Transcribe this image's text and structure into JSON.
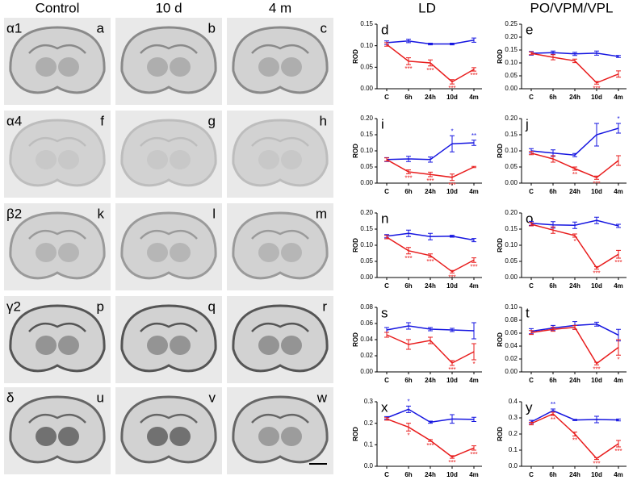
{
  "image_panels": {
    "column_titles": [
      "Control",
      "10 d",
      "4 m"
    ],
    "row_labels": [
      "α1",
      "α4",
      "β2",
      "γ2",
      "δ"
    ],
    "letters": [
      [
        "a",
        "b",
        "c"
      ],
      [
        "f",
        "g",
        "h"
      ],
      [
        "k",
        "l",
        "m"
      ],
      [
        "p",
        "q",
        "r"
      ],
      [
        "u",
        "v",
        "w"
      ]
    ]
  },
  "chart_column_titles": [
    "LD",
    "PO/VPM/VPL"
  ],
  "chart_data": [
    {
      "type": "line",
      "panel_label": "d",
      "ylabel": "ROD",
      "categories": [
        "C",
        "6h",
        "24h",
        "10d",
        "4m"
      ],
      "ylim": [
        0,
        0.15
      ],
      "yticks": [
        {
          "value": 0,
          "label": "0.00"
        },
        {
          "value": 0.05,
          "label": "0.05"
        },
        {
          "value": 0.1,
          "label": "0.10"
        },
        {
          "value": 0.15,
          "label": "0.15"
        }
      ],
      "series": [
        {
          "color": "#1515e0",
          "values": [
            0.107,
            0.111,
            0.104,
            0.104,
            0.113
          ],
          "errors": [
            0.004,
            0.004,
            0.002,
            0.002,
            0.005
          ],
          "stars": [
            null,
            null,
            null,
            null,
            null
          ]
        },
        {
          "color": "#e81c1c",
          "values": [
            0.103,
            0.064,
            0.06,
            0.016,
            0.045
          ],
          "errors": [
            0.004,
            0.008,
            0.007,
            0.005,
            0.004
          ],
          "stars": [
            null,
            "***",
            "***",
            "***",
            "***"
          ]
        }
      ]
    },
    {
      "type": "line",
      "panel_label": "e",
      "ylabel": "ROD",
      "categories": [
        "C",
        "6h",
        "24h",
        "10d",
        "4m"
      ],
      "ylim": [
        0,
        0.25
      ],
      "yticks": [
        {
          "value": 0,
          "label": "0.00"
        },
        {
          "value": 0.05,
          "label": "0.05"
        },
        {
          "value": 0.1,
          "label": "0.10"
        },
        {
          "value": 0.15,
          "label": "0.15"
        },
        {
          "value": 0.2,
          "label": "0.20"
        },
        {
          "value": 0.25,
          "label": "0.25"
        }
      ],
      "series": [
        {
          "color": "#1515e0",
          "values": [
            0.137,
            0.14,
            0.135,
            0.138,
            0.125
          ],
          "errors": [
            0.007,
            0.006,
            0.006,
            0.008,
            0.004
          ],
          "stars": [
            null,
            null,
            null,
            null,
            null
          ]
        },
        {
          "color": "#e81c1c",
          "values": [
            0.137,
            0.122,
            0.108,
            0.023,
            0.057
          ],
          "errors": [
            0.005,
            0.01,
            0.007,
            0.005,
            0.012
          ],
          "stars": [
            null,
            null,
            null,
            "***",
            null
          ]
        }
      ]
    },
    {
      "type": "line",
      "panel_label": "i",
      "ylabel": "ROD",
      "categories": [
        "C",
        "6h",
        "24h",
        "10d",
        "4m"
      ],
      "ylim": [
        0,
        0.2
      ],
      "yticks": [
        {
          "value": 0,
          "label": "0.00"
        },
        {
          "value": 0.05,
          "label": "0.05"
        },
        {
          "value": 0.1,
          "label": "0.10"
        },
        {
          "value": 0.15,
          "label": "0.15"
        },
        {
          "value": 0.2,
          "label": "0.20"
        }
      ],
      "series": [
        {
          "color": "#1515e0",
          "values": [
            0.073,
            0.075,
            0.073,
            0.122,
            0.125
          ],
          "errors": [
            0.006,
            0.008,
            0.008,
            0.025,
            0.008
          ],
          "stars": [
            null,
            null,
            null,
            "*",
            "**"
          ]
        },
        {
          "color": "#e81c1c",
          "values": [
            0.073,
            0.035,
            0.027,
            0.018,
            0.05
          ],
          "errors": [
            0.005,
            0.006,
            0.007,
            0.01,
            0.002
          ],
          "stars": [
            null,
            "***",
            "***",
            "***",
            null
          ]
        }
      ]
    },
    {
      "type": "line",
      "panel_label": "j",
      "ylabel": "ROD",
      "categories": [
        "C",
        "6h",
        "24h",
        "10d",
        "4m"
      ],
      "ylim": [
        0,
        0.2
      ],
      "yticks": [
        {
          "value": 0,
          "label": "0.00"
        },
        {
          "value": 0.05,
          "label": "0.05"
        },
        {
          "value": 0.1,
          "label": "0.10"
        },
        {
          "value": 0.15,
          "label": "0.15"
        },
        {
          "value": 0.2,
          "label": "0.20"
        }
      ],
      "series": [
        {
          "color": "#1515e0",
          "values": [
            0.1,
            0.093,
            0.087,
            0.15,
            0.17
          ],
          "errors": [
            0.007,
            0.01,
            0.005,
            0.035,
            0.015
          ],
          "stars": [
            null,
            null,
            null,
            null,
            "*"
          ]
        },
        {
          "color": "#e81c1c",
          "values": [
            0.093,
            0.075,
            0.045,
            0.017,
            0.07
          ],
          "errors": [
            0.005,
            0.01,
            0.005,
            0.005,
            0.015
          ],
          "stars": [
            null,
            null,
            "**",
            "***",
            null
          ]
        }
      ]
    },
    {
      "type": "line",
      "panel_label": "n",
      "ylabel": "ROD",
      "categories": [
        "C",
        "6h",
        "24h",
        "10d",
        "4m"
      ],
      "ylim": [
        0,
        0.2
      ],
      "yticks": [
        {
          "value": 0,
          "label": "0.00"
        },
        {
          "value": 0.05,
          "label": "0.05"
        },
        {
          "value": 0.1,
          "label": "0.10"
        },
        {
          "value": 0.15,
          "label": "0.15"
        },
        {
          "value": 0.2,
          "label": "0.20"
        }
      ],
      "series": [
        {
          "color": "#1515e0",
          "values": [
            0.128,
            0.137,
            0.127,
            0.128,
            0.116
          ],
          "errors": [
            0.005,
            0.01,
            0.01,
            0.003,
            0.005
          ],
          "stars": [
            null,
            null,
            null,
            null,
            null
          ]
        },
        {
          "color": "#e81c1c",
          "values": [
            0.125,
            0.083,
            0.068,
            0.018,
            0.054
          ],
          "errors": [
            0.005,
            0.01,
            0.005,
            0.004,
            0.007
          ],
          "stars": [
            null,
            "***",
            "***",
            "***",
            "***"
          ]
        }
      ]
    },
    {
      "type": "line",
      "panel_label": "o",
      "ylabel": "ROD",
      "categories": [
        "C",
        "6h",
        "24h",
        "10d",
        "4m"
      ],
      "ylim": [
        0,
        0.2
      ],
      "yticks": [
        {
          "value": 0,
          "label": "0.00"
        },
        {
          "value": 0.05,
          "label": "0.05"
        },
        {
          "value": 0.1,
          "label": "0.10"
        },
        {
          "value": 0.15,
          "label": "0.15"
        },
        {
          "value": 0.2,
          "label": "0.20"
        }
      ],
      "series": [
        {
          "color": "#1515e0",
          "values": [
            0.168,
            0.163,
            0.162,
            0.177,
            0.16
          ],
          "errors": [
            0.006,
            0.01,
            0.01,
            0.01,
            0.005
          ],
          "stars": [
            null,
            null,
            null,
            null,
            null
          ]
        },
        {
          "color": "#e81c1c",
          "values": [
            0.165,
            0.147,
            0.13,
            0.03,
            0.072
          ],
          "errors": [
            0.005,
            0.01,
            0.005,
            0.004,
            0.012
          ],
          "stars": [
            null,
            null,
            "*",
            "***",
            "***"
          ]
        }
      ]
    },
    {
      "type": "line",
      "panel_label": "s",
      "ylabel": "ROD",
      "categories": [
        "C",
        "6h",
        "24h",
        "10d",
        "4m"
      ],
      "ylim": [
        0,
        0.08
      ],
      "yticks": [
        {
          "value": 0,
          "label": "0.00"
        },
        {
          "value": 0.02,
          "label": "0.02"
        },
        {
          "value": 0.04,
          "label": "0.04"
        },
        {
          "value": 0.06,
          "label": "0.06"
        },
        {
          "value": 0.08,
          "label": "0.08"
        }
      ],
      "series": [
        {
          "color": "#1515e0",
          "values": [
            0.052,
            0.057,
            0.053,
            0.052,
            0.051
          ],
          "errors": [
            0.003,
            0.004,
            0.002,
            0.002,
            0.01
          ],
          "stars": [
            null,
            null,
            null,
            null,
            null
          ]
        },
        {
          "color": "#e81c1c",
          "values": [
            0.046,
            0.034,
            0.039,
            0.011,
            0.025
          ],
          "errors": [
            0.003,
            0.006,
            0.004,
            0.003,
            0.01
          ],
          "stars": [
            null,
            null,
            null,
            "***",
            "*"
          ]
        }
      ]
    },
    {
      "type": "line",
      "panel_label": "t",
      "ylabel": "ROD",
      "categories": [
        "C",
        "6h",
        "24h",
        "10d",
        "4m"
      ],
      "ylim": [
        0,
        0.1
      ],
      "yticks": [
        {
          "value": 0,
          "label": "0.00"
        },
        {
          "value": 0.02,
          "label": "0.02"
        },
        {
          "value": 0.04,
          "label": "0.04"
        },
        {
          "value": 0.06,
          "label": "0.06"
        },
        {
          "value": 0.08,
          "label": "0.08"
        },
        {
          "value": 0.1,
          "label": "0.10"
        }
      ],
      "series": [
        {
          "color": "#1515e0",
          "values": [
            0.063,
            0.068,
            0.072,
            0.074,
            0.057
          ],
          "errors": [
            0.004,
            0.004,
            0.006,
            0.003,
            0.009
          ],
          "stars": [
            null,
            null,
            null,
            null,
            null
          ]
        },
        {
          "color": "#e81c1c",
          "values": [
            0.061,
            0.066,
            0.069,
            0.013,
            0.038
          ],
          "errors": [
            0.003,
            0.003,
            0.003,
            0.002,
            0.012
          ],
          "stars": [
            null,
            null,
            null,
            "***",
            "*"
          ]
        }
      ]
    },
    {
      "type": "line",
      "panel_label": "x",
      "ylabel": "ROD",
      "categories": [
        "C",
        "6h",
        "24h",
        "10d",
        "4m"
      ],
      "ylim": [
        0,
        0.3
      ],
      "yticks": [
        {
          "value": 0,
          "label": "0.0"
        },
        {
          "value": 0.1,
          "label": "0.1"
        },
        {
          "value": 0.2,
          "label": "0.2"
        },
        {
          "value": 0.3,
          "label": "0.3"
        }
      ],
      "series": [
        {
          "color": "#1515e0",
          "values": [
            0.225,
            0.265,
            0.205,
            0.22,
            0.218
          ],
          "errors": [
            0.006,
            0.015,
            0.005,
            0.02,
            0.01
          ],
          "stars": [
            null,
            "*",
            null,
            null,
            null
          ]
        },
        {
          "color": "#e81c1c",
          "values": [
            0.22,
            0.182,
            0.12,
            0.043,
            0.085
          ],
          "errors": [
            0.006,
            0.018,
            0.004,
            0.006,
            0.01
          ],
          "stars": [
            null,
            "*",
            "***",
            "***",
            "***"
          ]
        }
      ]
    },
    {
      "type": "line",
      "panel_label": "y",
      "ylabel": "ROD",
      "categories": [
        "C",
        "6h",
        "24h",
        "10d",
        "4m"
      ],
      "ylim": [
        0,
        0.4
      ],
      "yticks": [
        {
          "value": 0,
          "label": "0.0"
        },
        {
          "value": 0.1,
          "label": "0.1"
        },
        {
          "value": 0.2,
          "label": "0.2"
        },
        {
          "value": 0.3,
          "label": "0.3"
        },
        {
          "value": 0.4,
          "label": "0.4"
        }
      ],
      "series": [
        {
          "color": "#1515e0",
          "values": [
            0.275,
            0.345,
            0.287,
            0.29,
            0.287
          ],
          "errors": [
            0.01,
            0.01,
            0.004,
            0.02,
            0.006
          ],
          "stars": [
            null,
            "**",
            null,
            null,
            null
          ]
        },
        {
          "color": "#e81c1c",
          "values": [
            0.265,
            0.325,
            0.2,
            0.048,
            0.14
          ],
          "errors": [
            0.008,
            0.01,
            0.012,
            0.006,
            0.02
          ],
          "stars": [
            null,
            "**",
            "**",
            "***",
            "***"
          ]
        }
      ]
    }
  ]
}
